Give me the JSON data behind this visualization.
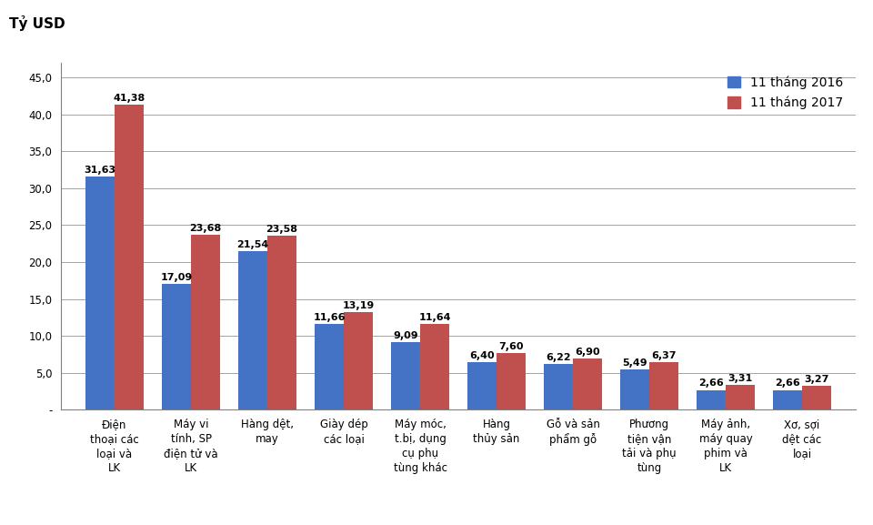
{
  "categories": [
    "Điện\nthoại các\nloại và\nLK",
    "Máy vi\ntính, SP\nđiện tử và\nLK",
    "Hàng dệt,\nmay",
    "Giày dép\ncác loại",
    "Máy móc,\nt.bị, dụng\ncụ phụ\ntùng khác",
    "Hàng\nthủy sản",
    "Gỗ và sản\nphẩm gỗ",
    "Phương\ntiện vận\ntải và phụ\ntùng",
    "Máy ảnh,\nmáy quay\nphim và\nLK",
    "Xơ, sợi\ndệt các\nloại"
  ],
  "values_2016": [
    31.63,
    17.09,
    21.54,
    11.66,
    9.09,
    6.4,
    6.22,
    5.49,
    2.66,
    2.66
  ],
  "values_2017": [
    41.38,
    23.68,
    23.58,
    13.19,
    11.64,
    7.6,
    6.9,
    6.37,
    3.31,
    3.27
  ],
  "color_2016": "#4472C4",
  "color_2017": "#C0504D",
  "ylabel": "Tỷ USD",
  "legend_2016": "11 tháng 2016",
  "legend_2017": "11 tháng 2017",
  "ylim": [
    0,
    47
  ],
  "yticks": [
    0,
    5.0,
    10.0,
    15.0,
    20.0,
    25.0,
    30.0,
    35.0,
    40.0,
    45.0
  ],
  "ytick_labels": [
    "-",
    "5,0",
    "10,0",
    "15,0",
    "20,0",
    "25,0",
    "30,0",
    "35,0",
    "40,0",
    "45,0"
  ],
  "bar_width": 0.38,
  "label_fontsize": 8.0,
  "axis_fontsize": 8.5,
  "ylabel_fontsize": 11,
  "legend_fontsize": 10
}
